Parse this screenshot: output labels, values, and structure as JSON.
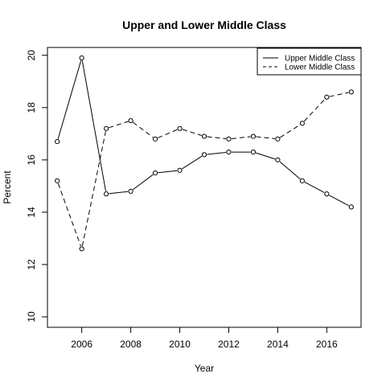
{
  "chart_data": {
    "type": "line",
    "title": "Upper and Lower Middle Class",
    "xlabel": "Year",
    "ylabel": "Percent",
    "xlim": [
      2004.6,
      2017.4
    ],
    "ylim": [
      9.6,
      20.3
    ],
    "x_ticks": [
      2006,
      2008,
      2010,
      2012,
      2014,
      2016
    ],
    "y_ticks": [
      10,
      12,
      14,
      16,
      18,
      20
    ],
    "grid": false,
    "legend_position": "top-right",
    "x": [
      2005,
      2006,
      2007,
      2008,
      2009,
      2010,
      2011,
      2012,
      2013,
      2014,
      2015,
      2016,
      2017
    ],
    "series": [
      {
        "name": "Upper Middle Class",
        "line_style": "solid",
        "marker": "open-circle",
        "values": [
          16.7,
          19.9,
          14.7,
          14.8,
          15.5,
          15.6,
          16.2,
          16.3,
          16.3,
          16.0,
          15.2,
          14.7,
          14.2
        ]
      },
      {
        "name": "Lower Middle Class",
        "line_style": "dashed",
        "marker": "open-circle",
        "values": [
          15.2,
          12.6,
          17.2,
          17.5,
          16.8,
          17.2,
          16.9,
          16.8,
          16.9,
          16.8,
          17.4,
          18.4,
          18.6
        ]
      }
    ]
  }
}
